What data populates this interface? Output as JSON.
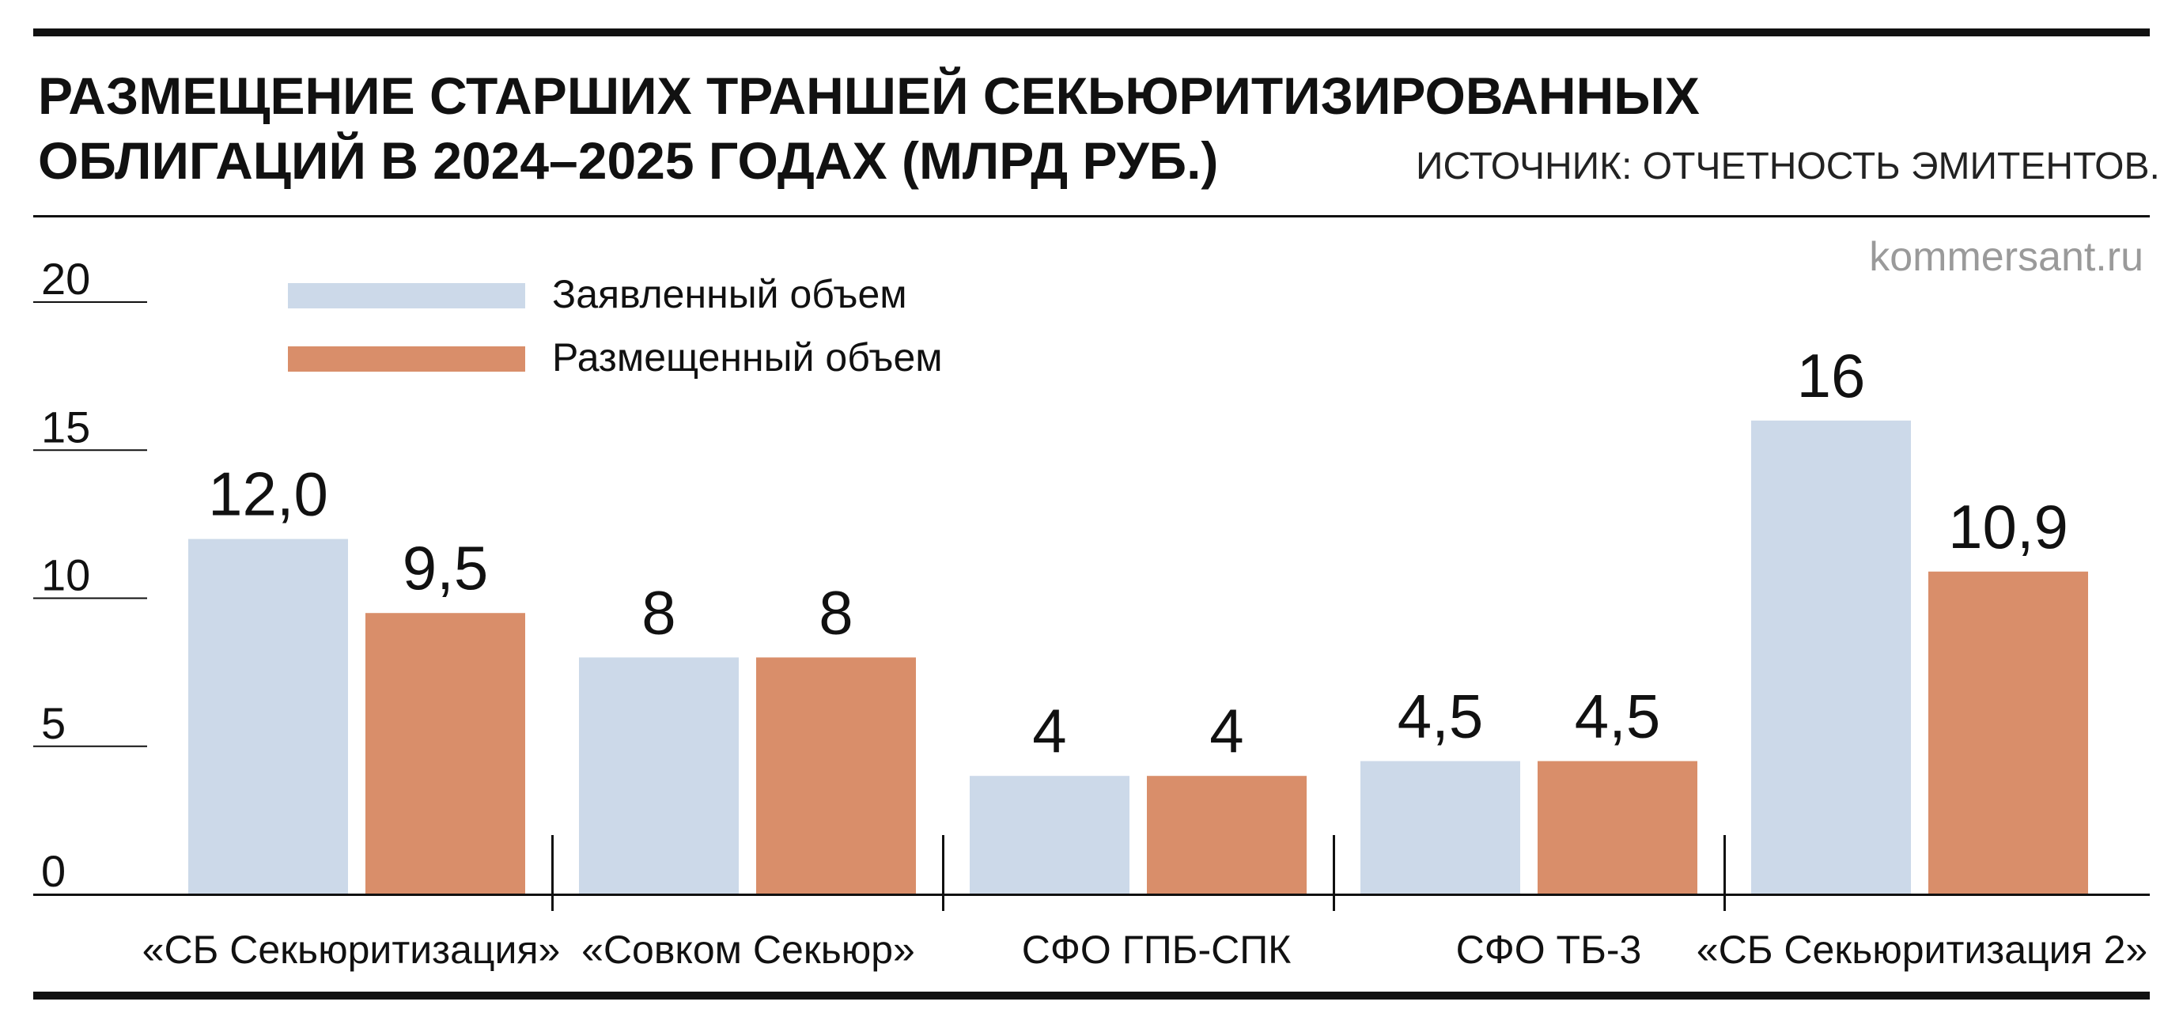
{
  "title_line1": "РАЗМЕЩЕНИЕ СТАРШИХ ТРАНШЕЙ СЕКЬЮРИТИЗИРОВАННЫХ",
  "title_line2": "ОБЛИГАЦИЙ В 2024–2025 ГОДАХ (МЛРД РУБ.)",
  "source": "ИСТОЧНИК: ОТЧЕТНОСТЬ ЭМИТЕНТОВ.",
  "site": "kommersant.ru",
  "chart_data": {
    "type": "bar",
    "categories": [
      "«СБ Секьюритизация»",
      "«Совком Секьюр»",
      "СФО ГПБ-СПК",
      "СФО ТБ-3",
      "«СБ Секьюритизация 2»"
    ],
    "series": [
      {
        "name": "Заявленный объем",
        "values": [
          12.0,
          8,
          4,
          4.5,
          16
        ],
        "labels": [
          "12,0",
          "8",
          "4",
          "4,5",
          "16"
        ],
        "color": "#ccd9e9"
      },
      {
        "name": "Размещенный объем",
        "values": [
          9.5,
          8,
          4,
          4.5,
          10.9
        ],
        "labels": [
          "9,5",
          "8",
          "4",
          "4,5",
          "10,9"
        ],
        "color": "#d98e6a"
      }
    ],
    "yticks": [
      "0",
      "5",
      "10",
      "15",
      "20"
    ],
    "ylim": [
      0,
      20
    ],
    "xlabel": "",
    "ylabel": "",
    "grid": false,
    "legend_position": "top-left"
  }
}
